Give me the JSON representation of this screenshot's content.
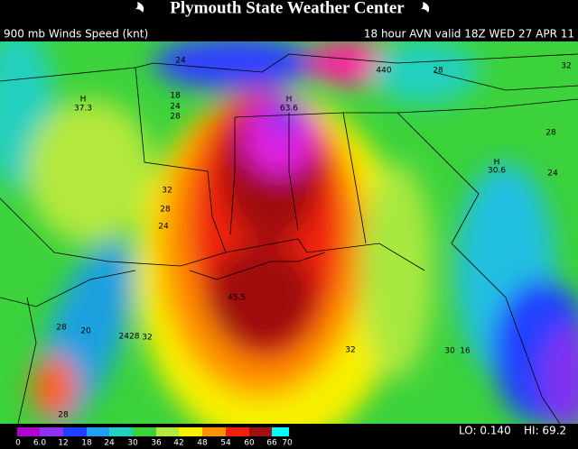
{
  "header": {
    "title": "Plymouth State Weather Center"
  },
  "subtitle": {
    "left": "900 mb Winds Speed (knt)",
    "right": "18 hour AVN valid 18Z WED 27 APR 11"
  },
  "colorbar": {
    "ticks": [
      "0",
      "6.0",
      "12",
      "18",
      "24",
      "30",
      "36",
      "42",
      "48",
      "54",
      "60",
      "66",
      "70"
    ]
  },
  "stats": {
    "lo": "LO: 0.140",
    "hi": "HI: 69.2"
  },
  "map_labels": [
    "24",
    "H",
    "37.3",
    "18",
    "24",
    "28",
    "H",
    "63.6",
    "32",
    "28",
    "24",
    "H",
    "30.6",
    "28",
    "24",
    "28",
    "32",
    "440",
    "45.5",
    "28",
    "20",
    "2428",
    "32",
    "32",
    "30",
    "16",
    "28"
  ]
}
